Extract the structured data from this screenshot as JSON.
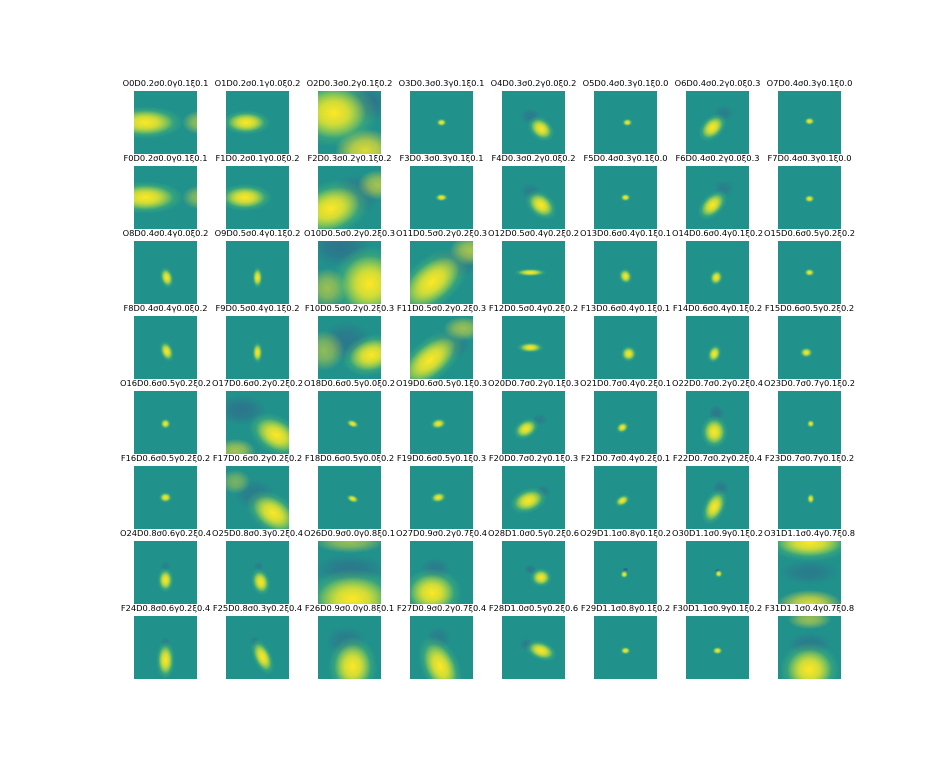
{
  "colors": {
    "background": "#21918c",
    "low": "#3b528b",
    "high": "#fde725",
    "mid": "#5ec962"
  },
  "chart_data": {
    "type": "heatmap",
    "rows": 8,
    "cols": 8,
    "colormap": "viridis",
    "axes": "off",
    "panels": [
      {
        "title": "O0D0.2σ0.0γ0.1ξ0.1",
        "kind": "blob",
        "cx": 0.18,
        "cy": 0.5,
        "sx": 0.28,
        "sy": 0.12,
        "rot": 0,
        "extra": [
          {
            "cx": 1.05,
            "cy": 0.5,
            "sx": 0.18,
            "sy": 0.12,
            "a": 0.55
          }
        ]
      },
      {
        "title": "O1D0.2σ0.1γ0.0ξ0.2",
        "kind": "blob",
        "cx": 0.32,
        "cy": 0.5,
        "sx": 0.18,
        "sy": 0.09,
        "rot": 0
      },
      {
        "title": "O2D0.3σ0.2γ0.1ξ0.2",
        "kind": "wide",
        "cx": 0.25,
        "cy": 0.35,
        "sx": 0.32,
        "sy": 0.25,
        "rot": 0,
        "extra": [
          {
            "cx": 0.75,
            "cy": 0.95,
            "sx": 0.3,
            "sy": 0.22,
            "a": 0.85
          }
        ],
        "neg": [
          {
            "cx": 0.75,
            "cy": 0.2,
            "sx": 0.25,
            "sy": 0.18,
            "a": 0.5
          }
        ]
      },
      {
        "title": "O3D0.3σ0.3γ0.1ξ0.1",
        "kind": "dot",
        "cx": 0.5,
        "cy": 0.5,
        "sx": 0.04,
        "sy": 0.03,
        "rot": 0
      },
      {
        "title": "O4D0.3σ0.2γ0.0ξ0.2",
        "kind": "blob",
        "cx": 0.62,
        "cy": 0.6,
        "sx": 0.11,
        "sy": 0.08,
        "rot": 40,
        "neg": [
          {
            "cx": 0.45,
            "cy": 0.4,
            "sx": 0.1,
            "sy": 0.08,
            "a": 0.35
          }
        ]
      },
      {
        "title": "O5D0.4σ0.3γ0.1ξ0.0",
        "kind": "dot",
        "cx": 0.53,
        "cy": 0.5,
        "sx": 0.04,
        "sy": 0.03,
        "rot": 0
      },
      {
        "title": "O6D0.4σ0.2γ0.0ξ0.3",
        "kind": "blob",
        "cx": 0.42,
        "cy": 0.58,
        "sx": 0.12,
        "sy": 0.08,
        "rot": -45,
        "neg": [
          {
            "cx": 0.6,
            "cy": 0.35,
            "sx": 0.1,
            "sy": 0.08,
            "a": 0.3
          }
        ]
      },
      {
        "title": "O7D0.4σ0.3γ0.1ξ0.0",
        "kind": "dot",
        "cx": 0.5,
        "cy": 0.48,
        "sx": 0.04,
        "sy": 0.03,
        "rot": 0
      },
      {
        "title": "F0D0.2σ0.0γ0.1ξ0.1",
        "kind": "blob",
        "cx": 0.18,
        "cy": 0.5,
        "sx": 0.28,
        "sy": 0.12,
        "rot": 0,
        "extra": [
          {
            "cx": 1.05,
            "cy": 0.5,
            "sx": 0.18,
            "sy": 0.12,
            "a": 0.5
          }
        ]
      },
      {
        "title": "F1D0.2σ0.1γ0.0ξ0.2",
        "kind": "blob",
        "cx": 0.3,
        "cy": 0.5,
        "sx": 0.2,
        "sy": 0.1,
        "rot": 0
      },
      {
        "title": "F2D0.3σ0.2γ0.1ξ0.2",
        "kind": "wide",
        "cx": 0.2,
        "cy": 0.68,
        "sx": 0.3,
        "sy": 0.2,
        "rot": -20,
        "extra": [
          {
            "cx": 0.95,
            "cy": 0.3,
            "sx": 0.2,
            "sy": 0.15,
            "a": 0.6
          }
        ],
        "neg": [
          {
            "cx": 0.6,
            "cy": 0.45,
            "sx": 0.25,
            "sy": 0.2,
            "a": 0.4
          }
        ]
      },
      {
        "title": "F3D0.3σ0.3γ0.1ξ0.1",
        "kind": "dot",
        "cx": 0.5,
        "cy": 0.5,
        "sx": 0.05,
        "sy": 0.03,
        "rot": 0
      },
      {
        "title": "F4D0.3σ0.2γ0.0ξ0.2",
        "kind": "blob",
        "cx": 0.62,
        "cy": 0.62,
        "sx": 0.13,
        "sy": 0.09,
        "rot": 40,
        "neg": [
          {
            "cx": 0.45,
            "cy": 0.4,
            "sx": 0.1,
            "sy": 0.08,
            "a": 0.3
          }
        ]
      },
      {
        "title": "F5D0.4σ0.3γ0.1ξ0.0",
        "kind": "dot",
        "cx": 0.5,
        "cy": 0.5,
        "sx": 0.04,
        "sy": 0.03,
        "rot": 0
      },
      {
        "title": "F6D0.4σ0.2γ0.0ξ0.3",
        "kind": "blob",
        "cx": 0.42,
        "cy": 0.62,
        "sx": 0.13,
        "sy": 0.08,
        "rot": -45,
        "neg": [
          {
            "cx": 0.6,
            "cy": 0.35,
            "sx": 0.1,
            "sy": 0.08,
            "a": 0.3
          }
        ]
      },
      {
        "title": "F7D0.4σ0.3γ0.1ξ0.0",
        "kind": "dot",
        "cx": 0.5,
        "cy": 0.52,
        "sx": 0.04,
        "sy": 0.03,
        "rot": 0
      },
      {
        "title": "O8D0.4σ0.4γ0.0ξ0.2",
        "kind": "blob",
        "cx": 0.52,
        "cy": 0.58,
        "sx": 0.05,
        "sy": 0.08,
        "rot": -15
      },
      {
        "title": "O9D0.5σ0.4γ0.1ξ0.2",
        "kind": "blob",
        "cx": 0.5,
        "cy": 0.58,
        "sx": 0.04,
        "sy": 0.08,
        "rot": 0
      },
      {
        "title": "O10D0.5σ0.2γ0.2ξ0.3",
        "kind": "wide",
        "cx": 0.82,
        "cy": 0.68,
        "sx": 0.28,
        "sy": 0.28,
        "rot": 0,
        "extra": [
          {
            "cx": 0.15,
            "cy": 0.75,
            "sx": 0.2,
            "sy": 0.2,
            "a": 0.55
          }
        ],
        "neg": [
          {
            "cx": 0.35,
            "cy": 0.1,
            "sx": 0.3,
            "sy": 0.2,
            "a": 0.45
          }
        ]
      },
      {
        "title": "O11D0.5σ0.2γ0.2ξ0.3",
        "kind": "wide",
        "cx": 0.35,
        "cy": 0.65,
        "sx": 0.32,
        "sy": 0.18,
        "rot": -40,
        "extra": [
          {
            "cx": 0.95,
            "cy": 0.15,
            "sx": 0.2,
            "sy": 0.15,
            "a": 0.6
          }
        ],
        "neg": [
          {
            "cx": 0.7,
            "cy": 0.35,
            "sx": 0.25,
            "sy": 0.15,
            "a": 0.45
          }
        ]
      },
      {
        "title": "O12D0.5σ0.4γ0.2ξ0.2",
        "kind": "blob",
        "cx": 0.45,
        "cy": 0.5,
        "sx": 0.12,
        "sy": 0.03,
        "rot": 0
      },
      {
        "title": "O13D0.6σ0.4γ0.1ξ0.1",
        "kind": "blob",
        "cx": 0.5,
        "cy": 0.56,
        "sx": 0.05,
        "sy": 0.06,
        "rot": -20
      },
      {
        "title": "O14D0.6σ0.4γ0.1ξ0.2",
        "kind": "blob",
        "cx": 0.48,
        "cy": 0.58,
        "sx": 0.05,
        "sy": 0.06,
        "rot": 20
      },
      {
        "title": "O15D0.6σ0.5γ0.2ξ0.2",
        "kind": "dot",
        "cx": 0.5,
        "cy": 0.5,
        "sx": 0.04,
        "sy": 0.03,
        "rot": 0
      },
      {
        "title": "F8D0.4σ0.4γ0.0ξ0.2",
        "kind": "blob",
        "cx": 0.52,
        "cy": 0.56,
        "sx": 0.05,
        "sy": 0.08,
        "rot": -20
      },
      {
        "title": "F9D0.5σ0.4γ0.1ξ0.2",
        "kind": "blob",
        "cx": 0.5,
        "cy": 0.58,
        "sx": 0.04,
        "sy": 0.08,
        "rot": 0
      },
      {
        "title": "F10D0.5σ0.2γ0.2ξ0.3",
        "kind": "wide",
        "cx": 0.85,
        "cy": 0.62,
        "sx": 0.22,
        "sy": 0.15,
        "rot": -15,
        "extra": [
          {
            "cx": 0.1,
            "cy": 0.55,
            "sx": 0.2,
            "sy": 0.2,
            "a": 0.5
          }
        ],
        "neg": [
          {
            "cx": 0.45,
            "cy": 0.4,
            "sx": 0.25,
            "sy": 0.2,
            "a": 0.4
          }
        ]
      },
      {
        "title": "F11D0.5σ0.2γ0.2ξ0.3",
        "kind": "wide",
        "cx": 0.32,
        "cy": 0.7,
        "sx": 0.3,
        "sy": 0.15,
        "rot": -40,
        "extra": [
          {
            "cx": 0.85,
            "cy": 0.2,
            "sx": 0.2,
            "sy": 0.12,
            "a": 0.55
          }
        ],
        "neg": [
          {
            "cx": 0.65,
            "cy": 0.45,
            "sx": 0.2,
            "sy": 0.15,
            "a": 0.4
          }
        ]
      },
      {
        "title": "F12D0.5σ0.4γ0.2ξ0.2",
        "kind": "blob",
        "cx": 0.45,
        "cy": 0.5,
        "sx": 0.1,
        "sy": 0.04,
        "rot": 0
      },
      {
        "title": "F13D0.6σ0.4γ0.1ξ0.1",
        "kind": "blob",
        "cx": 0.55,
        "cy": 0.6,
        "sx": 0.06,
        "sy": 0.06,
        "rot": -30
      },
      {
        "title": "F14D0.6σ0.4γ0.1ξ0.2",
        "kind": "blob",
        "cx": 0.45,
        "cy": 0.6,
        "sx": 0.05,
        "sy": 0.07,
        "rot": 20
      },
      {
        "title": "F15D0.6σ0.5γ0.2ξ0.2",
        "kind": "dot",
        "cx": 0.45,
        "cy": 0.58,
        "sx": 0.05,
        "sy": 0.04,
        "rot": 0
      },
      {
        "title": "O16D0.6σ0.5γ0.2ξ0.2",
        "kind": "dot",
        "cx": 0.5,
        "cy": 0.52,
        "sx": 0.04,
        "sy": 0.04,
        "rot": 0
      },
      {
        "title": "O17D0.6σ0.2γ0.2ξ0.2",
        "kind": "wide",
        "cx": 0.8,
        "cy": 0.7,
        "sx": 0.22,
        "sy": 0.14,
        "rot": 30,
        "extra": [
          {
            "cx": 0.15,
            "cy": 0.95,
            "sx": 0.2,
            "sy": 0.12,
            "a": 0.6
          }
        ],
        "neg": [
          {
            "cx": 0.25,
            "cy": 0.3,
            "sx": 0.25,
            "sy": 0.15,
            "a": 0.45
          }
        ]
      },
      {
        "title": "O18D0.6σ0.5γ0.0ξ0.2",
        "kind": "blob",
        "cx": 0.55,
        "cy": 0.52,
        "sx": 0.05,
        "sy": 0.03,
        "rot": 20
      },
      {
        "title": "O19D0.6σ0.5γ0.1ξ0.3",
        "kind": "blob",
        "cx": 0.45,
        "cy": 0.52,
        "sx": 0.06,
        "sy": 0.04,
        "rot": -10
      },
      {
        "title": "O20D0.7σ0.2γ0.1ξ0.3",
        "kind": "blob",
        "cx": 0.38,
        "cy": 0.6,
        "sx": 0.1,
        "sy": 0.07,
        "rot": -30,
        "neg": [
          {
            "cx": 0.6,
            "cy": 0.45,
            "sx": 0.08,
            "sy": 0.06,
            "a": 0.3
          }
        ]
      },
      {
        "title": "O21D0.7σ0.4γ0.2ξ0.1",
        "kind": "blob",
        "cx": 0.45,
        "cy": 0.58,
        "sx": 0.05,
        "sy": 0.04,
        "rot": -30
      },
      {
        "title": "O22D0.7σ0.2γ0.2ξ0.4",
        "kind": "blob",
        "cx": 0.45,
        "cy": 0.65,
        "sx": 0.1,
        "sy": 0.12,
        "rot": 0,
        "neg": [
          {
            "cx": 0.48,
            "cy": 0.35,
            "sx": 0.08,
            "sy": 0.08,
            "a": 0.4
          }
        ]
      },
      {
        "title": "O23D0.7σ0.7γ0.1ξ0.2",
        "kind": "dot",
        "cx": 0.52,
        "cy": 0.52,
        "sx": 0.03,
        "sy": 0.03,
        "rot": 0
      },
      {
        "title": "F16D0.6σ0.5γ0.2ξ0.2",
        "kind": "dot",
        "cx": 0.5,
        "cy": 0.5,
        "sx": 0.05,
        "sy": 0.04,
        "rot": 0
      },
      {
        "title": "F17D0.6σ0.2γ0.2ξ0.2",
        "kind": "wide",
        "cx": 0.75,
        "cy": 0.75,
        "sx": 0.22,
        "sy": 0.14,
        "rot": 35,
        "extra": [
          {
            "cx": 0.15,
            "cy": 0.25,
            "sx": 0.15,
            "sy": 0.12,
            "a": 0.4
          }
        ],
        "neg": [
          {
            "cx": 0.45,
            "cy": 0.45,
            "sx": 0.2,
            "sy": 0.15,
            "a": 0.35
          }
        ]
      },
      {
        "title": "F18D0.6σ0.5γ0.0ξ0.2",
        "kind": "blob",
        "cx": 0.55,
        "cy": 0.52,
        "sx": 0.05,
        "sy": 0.03,
        "rot": 20
      },
      {
        "title": "F19D0.6σ0.5γ0.1ξ0.3",
        "kind": "blob",
        "cx": 0.45,
        "cy": 0.5,
        "sx": 0.06,
        "sy": 0.04,
        "rot": -10
      },
      {
        "title": "F20D0.7σ0.2γ0.1ξ0.3",
        "kind": "blob",
        "cx": 0.42,
        "cy": 0.55,
        "sx": 0.14,
        "sy": 0.09,
        "rot": -20,
        "neg": [
          {
            "cx": 0.65,
            "cy": 0.4,
            "sx": 0.08,
            "sy": 0.06,
            "a": 0.3
          }
        ]
      },
      {
        "title": "F21D0.7σ0.4γ0.2ξ0.1",
        "kind": "blob",
        "cx": 0.45,
        "cy": 0.55,
        "sx": 0.06,
        "sy": 0.04,
        "rot": -30
      },
      {
        "title": "F22D0.7σ0.2γ0.2ξ0.4",
        "kind": "blob",
        "cx": 0.45,
        "cy": 0.65,
        "sx": 0.08,
        "sy": 0.14,
        "rot": 25,
        "neg": [
          {
            "cx": 0.55,
            "cy": 0.35,
            "sx": 0.08,
            "sy": 0.08,
            "a": 0.35
          }
        ]
      },
      {
        "title": "F23D0.7σ0.7γ0.1ξ0.2",
        "kind": "dot",
        "cx": 0.52,
        "cy": 0.52,
        "sx": 0.03,
        "sy": 0.04,
        "rot": 0
      },
      {
        "title": "O24D0.8σ0.6γ0.2ξ0.4",
        "kind": "blob",
        "cx": 0.5,
        "cy": 0.62,
        "sx": 0.06,
        "sy": 0.09,
        "rot": 0,
        "neg": [
          {
            "cx": 0.5,
            "cy": 0.4,
            "sx": 0.05,
            "sy": 0.05,
            "a": 0.3
          }
        ]
      },
      {
        "title": "O25D0.8σ0.3γ0.2ξ0.4",
        "kind": "blob",
        "cx": 0.55,
        "cy": 0.65,
        "sx": 0.07,
        "sy": 0.1,
        "rot": -15,
        "neg": [
          {
            "cx": 0.52,
            "cy": 0.4,
            "sx": 0.05,
            "sy": 0.05,
            "a": 0.3
          }
        ]
      },
      {
        "title": "O26D0.9σ0.0γ0.8ξ0.1",
        "kind": "wide",
        "cx": 0.55,
        "cy": 0.92,
        "sx": 0.35,
        "sy": 0.22,
        "rot": 0,
        "extra": [
          {
            "cx": 0.5,
            "cy": 0.0,
            "sx": 0.35,
            "sy": 0.12,
            "a": 0.55
          }
        ],
        "neg": [
          {
            "cx": 0.5,
            "cy": 0.45,
            "sx": 0.35,
            "sy": 0.15,
            "a": 0.4
          }
        ]
      },
      {
        "title": "O27D0.9σ0.2γ0.7ξ0.4",
        "kind": "wide",
        "cx": 0.35,
        "cy": 0.82,
        "sx": 0.22,
        "sy": 0.18,
        "rot": 0,
        "neg": [
          {
            "cx": 0.4,
            "cy": 0.45,
            "sx": 0.15,
            "sy": 0.12,
            "a": 0.35
          }
        ]
      },
      {
        "title": "O28D1.0σ0.5γ0.2ξ0.6",
        "kind": "blob",
        "cx": 0.62,
        "cy": 0.58,
        "sx": 0.08,
        "sy": 0.07,
        "rot": 0,
        "neg": [
          {
            "cx": 0.45,
            "cy": 0.45,
            "sx": 0.06,
            "sy": 0.05,
            "a": 0.4
          }
        ]
      },
      {
        "title": "O29D1.1σ0.8γ0.1ξ0.2",
        "kind": "dot",
        "cx": 0.48,
        "cy": 0.53,
        "sx": 0.03,
        "sy": 0.03,
        "rot": 0,
        "neg": [
          {
            "cx": 0.5,
            "cy": 0.45,
            "sx": 0.03,
            "sy": 0.02,
            "a": 0.9
          }
        ]
      },
      {
        "title": "O30D1.1σ0.9γ0.1ξ0.2",
        "kind": "dot",
        "cx": 0.52,
        "cy": 0.52,
        "sx": 0.03,
        "sy": 0.03,
        "rot": 0,
        "neg": [
          {
            "cx": 0.5,
            "cy": 0.47,
            "sx": 0.03,
            "sy": 0.02,
            "a": 0.8
          }
        ]
      },
      {
        "title": "O31D1.1σ0.4γ0.7ξ0.8",
        "kind": "wide",
        "cx": 0.5,
        "cy": 0.02,
        "sx": 0.32,
        "sy": 0.14,
        "rot": 0,
        "extra": [
          {
            "cx": 0.5,
            "cy": 1.0,
            "sx": 0.32,
            "sy": 0.14,
            "a": 0.85
          }
        ],
        "neg": [
          {
            "cx": 0.5,
            "cy": 0.5,
            "sx": 0.3,
            "sy": 0.12,
            "a": 0.35
          }
        ]
      },
      {
        "title": "F24D0.8σ0.6γ0.2ξ0.4",
        "kind": "blob",
        "cx": 0.5,
        "cy": 0.7,
        "sx": 0.07,
        "sy": 0.14,
        "rot": 0,
        "neg": [
          {
            "cx": 0.5,
            "cy": 0.42,
            "sx": 0.05,
            "sy": 0.05,
            "a": 0.3
          }
        ]
      },
      {
        "title": "F25D0.8σ0.3γ0.2ξ0.4",
        "kind": "blob",
        "cx": 0.58,
        "cy": 0.65,
        "sx": 0.07,
        "sy": 0.14,
        "rot": -25,
        "neg": [
          {
            "cx": 0.45,
            "cy": 0.4,
            "sx": 0.05,
            "sy": 0.05,
            "a": 0.3
          }
        ]
      },
      {
        "title": "F26D0.9σ0.0γ0.8ξ0.1",
        "kind": "wide",
        "cx": 0.55,
        "cy": 0.8,
        "sx": 0.18,
        "sy": 0.22,
        "rot": 0,
        "neg": [
          {
            "cx": 0.45,
            "cy": 0.4,
            "sx": 0.2,
            "sy": 0.15,
            "a": 0.35
          }
        ]
      },
      {
        "title": "F27D0.9σ0.2γ0.7ξ0.4",
        "kind": "wide",
        "cx": 0.48,
        "cy": 0.8,
        "sx": 0.14,
        "sy": 0.24,
        "rot": -25,
        "neg": [
          {
            "cx": 0.45,
            "cy": 0.35,
            "sx": 0.12,
            "sy": 0.12,
            "a": 0.3
          }
        ]
      },
      {
        "title": "F28D1.0σ0.5γ0.2ξ0.6",
        "kind": "blob",
        "cx": 0.62,
        "cy": 0.55,
        "sx": 0.12,
        "sy": 0.07,
        "rot": 20,
        "neg": [
          {
            "cx": 0.4,
            "cy": 0.45,
            "sx": 0.08,
            "sy": 0.06,
            "a": 0.35
          }
        ]
      },
      {
        "title": "F29D1.1σ0.8γ0.1ξ0.2",
        "kind": "dot",
        "cx": 0.5,
        "cy": 0.55,
        "sx": 0.04,
        "sy": 0.03,
        "rot": 0
      },
      {
        "title": "F30D1.1σ0.9γ0.1ξ0.2",
        "kind": "dot",
        "cx": 0.5,
        "cy": 0.55,
        "sx": 0.04,
        "sy": 0.03,
        "rot": 0
      },
      {
        "title": "F31D1.1σ0.4γ0.7ξ0.8",
        "kind": "wide",
        "cx": 0.5,
        "cy": 0.85,
        "sx": 0.22,
        "sy": 0.2,
        "rot": 0,
        "extra": [
          {
            "cx": 0.5,
            "cy": 0.05,
            "sx": 0.22,
            "sy": 0.1,
            "a": 0.55
          }
        ],
        "neg": [
          {
            "cx": 0.5,
            "cy": 0.45,
            "sx": 0.22,
            "sy": 0.12,
            "a": 0.35
          }
        ]
      }
    ]
  }
}
